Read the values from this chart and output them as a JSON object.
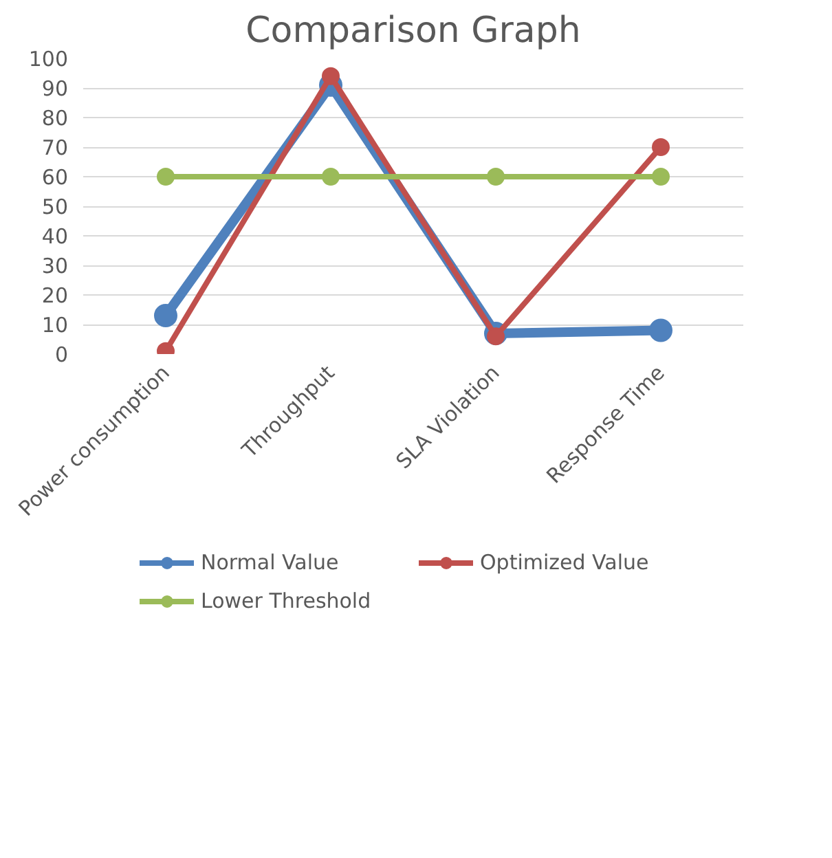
{
  "chart_data": {
    "type": "line",
    "title": "Comparison Graph",
    "categories": [
      "Power consumption",
      "Throughput",
      "SLA Violation",
      "Response Time"
    ],
    "series": [
      {
        "name": "Normal Value",
        "color": "#4f81bd",
        "values": [
          13,
          91,
          7,
          8
        ]
      },
      {
        "name": "Optimized Value",
        "color": "#c0504d",
        "values": [
          1,
          94,
          6,
          70
        ]
      },
      {
        "name": "Lower Threshold",
        "color": "#9bbb59",
        "values": [
          60,
          60,
          60,
          60
        ]
      }
    ],
    "ylim": [
      0,
      100
    ],
    "yticks": [
      0,
      10,
      20,
      30,
      40,
      50,
      60,
      70,
      80,
      90,
      100
    ],
    "grid": "y",
    "legend": "bottom",
    "marker": "circle",
    "line_style": "solid"
  }
}
